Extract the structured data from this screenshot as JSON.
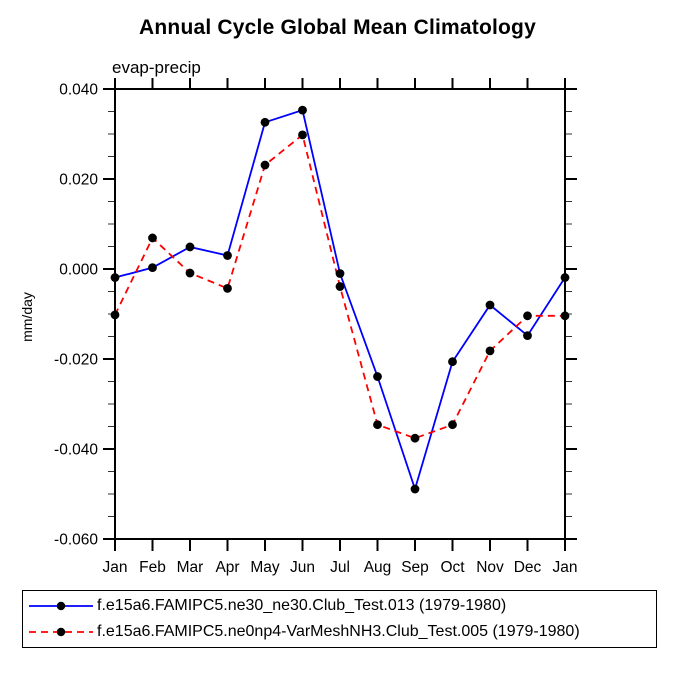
{
  "title": "Annual Cycle Global Mean Climatology",
  "subtitle": "evap-precip",
  "y_axis_label": "mm/day",
  "chart_data": {
    "type": "line",
    "title": "Annual Cycle Global Mean Climatology",
    "subtitle": "evap-precip",
    "xlabel": "",
    "ylabel": "mm/day",
    "categories": [
      "Jan",
      "Feb",
      "Mar",
      "Apr",
      "May",
      "Jun",
      "Jul",
      "Aug",
      "Sep",
      "Oct",
      "Nov",
      "Dec",
      "Jan"
    ],
    "ylim": [
      -0.06,
      0.04
    ],
    "ytick_step": 0.02,
    "yminor_step": 0.005,
    "ytick_labels": [
      "0.040",
      "0.020",
      "0.000",
      "-0.020",
      "-0.040",
      "-0.060"
    ],
    "grid": false,
    "legend_position": "bottom",
    "series": [
      {
        "name": "f.e15a6.FAMIPC5.ne30_ne30.Club_Test.013 (1979-1980)",
        "color": "#0000ff",
        "line_style": "solid",
        "marker": "filled-circle",
        "marker_color": "#000000",
        "values": [
          -0.0019,
          0.0003,
          0.0049,
          0.003,
          0.0326,
          0.0353,
          -0.001,
          -0.0239,
          -0.0489,
          -0.0206,
          -0.008,
          -0.0148,
          -0.0019
        ]
      },
      {
        "name": "f.e15a6.FAMIPC5.ne0np4-VarMeshNH3.Club_Test.005 (1979-1980)",
        "color": "#ff0000",
        "line_style": "dashed",
        "marker": "filled-circle",
        "marker_color": "#000000",
        "values": [
          -0.0102,
          0.0069,
          -0.0009,
          -0.0043,
          0.0231,
          0.0298,
          -0.0039,
          -0.0346,
          -0.0376,
          -0.0346,
          -0.0182,
          -0.0104,
          -0.0104
        ]
      }
    ]
  }
}
